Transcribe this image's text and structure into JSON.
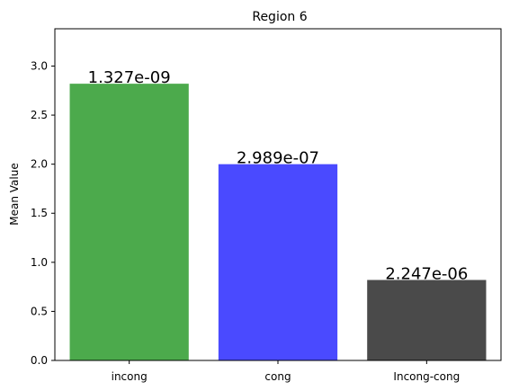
{
  "chart_data": {
    "type": "bar",
    "title": "Region 6",
    "xlabel": "",
    "ylabel": "Mean Value",
    "categories": [
      "incong",
      "cong",
      "Incong-cong"
    ],
    "values": [
      2.82,
      2.0,
      0.82
    ],
    "data_labels": [
      "1.327e-09",
      "2.989e-07",
      "2.247e-06"
    ],
    "colors": [
      "#4caa4c",
      "#4a4aff",
      "#4a4a4a"
    ],
    "ylim": [
      0,
      3.38
    ],
    "yticks": [
      "0.0",
      "0.5",
      "1.0",
      "1.5",
      "2.0",
      "2.5",
      "3.0"
    ],
    "ytick_values": [
      0,
      0.5,
      1.0,
      1.5,
      2.0,
      2.5,
      3.0
    ],
    "grid": false,
    "legend": "none"
  }
}
